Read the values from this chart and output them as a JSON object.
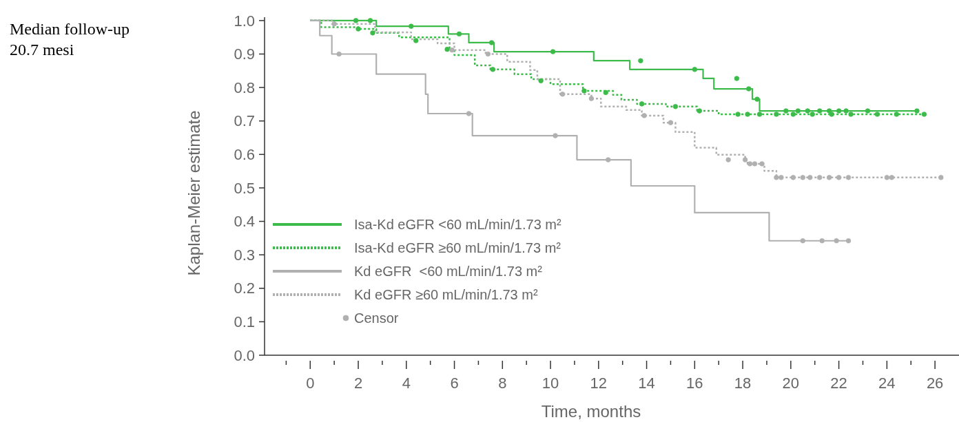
{
  "chart_data": {
    "type": "step",
    "xlabel": "Time, months",
    "ylabel": "Kaplan-Meier estimate",
    "annotations": [
      "Median follow-up\n20.7 mesi"
    ],
    "xlim": [
      -1.9,
      27
    ],
    "ylim": [
      0,
      1.01
    ],
    "xticks": [
      {
        "value": -1,
        "label": null
      },
      0,
      {
        "value": 1,
        "label": null
      },
      2,
      {
        "value": 3,
        "label": null
      },
      4,
      {
        "value": 5,
        "label": null
      },
      6,
      {
        "value": 7,
        "label": null
      },
      8,
      {
        "value": 9,
        "label": null
      },
      10,
      {
        "value": 11,
        "label": null
      },
      12,
      {
        "value": 13,
        "label": null
      },
      14,
      {
        "value": 15,
        "label": null
      },
      16,
      {
        "value": 17,
        "label": null
      },
      18,
      {
        "value": 19,
        "label": null
      },
      20,
      {
        "value": 21,
        "label": null
      },
      22,
      {
        "value": 23,
        "label": null
      },
      24,
      {
        "value": 25,
        "label": null
      },
      26
    ],
    "yticks": [
      {
        "value": 0,
        "label": "0.0"
      },
      {
        "value": 0.1,
        "label": "0.1"
      },
      {
        "value": 0.2,
        "label": "0.2"
      },
      {
        "value": 0.3,
        "label": "0.3"
      },
      {
        "value": 0.4,
        "label": "0.4"
      },
      {
        "value": 0.5,
        "label": "0.5"
      },
      {
        "value": 0.6,
        "label": "0.6"
      },
      {
        "value": 0.7,
        "label": "0.7"
      },
      {
        "value": 0.8,
        "label": "0.8"
      },
      {
        "value": 0.9,
        "label": "0.9"
      },
      {
        "value": 1,
        "label": "1.0"
      }
    ],
    "legend": "bottom left",
    "series": [
      {
        "name": "Isa-Kd eGFR <60 mL/min/1.73 m²",
        "color": "#3dbb4a",
        "line_style": "solid",
        "x": [
          0,
          2.75,
          5.75,
          6.6,
          7.65,
          11.8,
          13.3,
          16.35,
          16.8,
          18.4,
          18.7,
          25.25
        ],
        "values": [
          1.0,
          0.983,
          0.96,
          0.934,
          0.907,
          0.88,
          0.854,
          0.827,
          0.796,
          0.765,
          0.73,
          0.73
        ]
      },
      {
        "name": "Isa-Kd eGFR ≥60 mL/min/1.73 m²",
        "color": "#3dbb4a",
        "line_style": "dotted",
        "x": [
          0,
          0.46,
          2.0,
          2.75,
          3.7,
          5.8,
          6.0,
          6.85,
          7.5,
          8.5,
          9.2,
          10.0,
          11.35,
          12.6,
          12.95,
          13.6,
          14.8,
          16.1,
          17.0,
          25.55
        ],
        "values": [
          1.0,
          0.98,
          0.975,
          0.963,
          0.95,
          0.914,
          0.897,
          0.866,
          0.854,
          0.84,
          0.825,
          0.81,
          0.79,
          0.778,
          0.763,
          0.751,
          0.743,
          0.73,
          0.72,
          0.72
        ]
      },
      {
        "name": "Kd eGFR  <60 mL/min/1.73 m²",
        "color": "#b0b0b0",
        "line_style": "solid",
        "x": [
          0,
          0.4,
          0.9,
          2.75,
          4.8,
          4.9,
          6.75,
          11.1,
          13.35,
          16.0,
          19.1,
          22.4
        ],
        "values": [
          1.0,
          0.955,
          0.9,
          0.84,
          0.78,
          0.722,
          0.656,
          0.584,
          0.506,
          0.426,
          0.342,
          0.342
        ]
      },
      {
        "name": "Kd eGFR ≥60 mL/min/1.73 m²",
        "color": "#b0b0b0",
        "line_style": "dotted",
        "x": [
          0,
          0.9,
          2.7,
          4.2,
          5.3,
          6.0,
          7.3,
          8.2,
          9.15,
          9.45,
          10.4,
          11.7,
          12.1,
          13.15,
          13.8,
          14.7,
          15.2,
          16.0,
          16.9,
          18.1,
          18.2,
          18.9,
          19.4,
          26.25
        ],
        "values": [
          1.0,
          0.99,
          0.965,
          0.944,
          0.932,
          0.912,
          0.9,
          0.877,
          0.852,
          0.825,
          0.78,
          0.767,
          0.743,
          0.733,
          0.716,
          0.695,
          0.667,
          0.62,
          0.599,
          0.584,
          0.572,
          0.551,
          0.531,
          0.531
        ]
      },
      {
        "name": "Censor",
        "type": "scatter",
        "color": "#b0b0b0",
        "x": [
          1.2,
          6.6,
          10.2,
          12.4,
          20.5,
          21.3,
          21.9,
          22.4
        ],
        "values": [
          0.9,
          0.722,
          0.656,
          0.584,
          0.342,
          0.342,
          0.342,
          0.342
        ]
      },
      {
        "type": "scatter",
        "color": "#b0b0b0",
        "x": [
          1.0,
          5.9,
          7.4,
          10.5,
          11.7,
          13.9,
          15.0,
          17.4,
          18.1,
          18.3,
          18.5,
          18.8,
          19.4,
          19.6,
          20.1,
          20.5,
          20.8,
          21.2,
          21.6,
          22.0,
          22.4,
          24.0,
          24.2,
          26.25
        ],
        "values": [
          0.99,
          0.912,
          0.9,
          0.78,
          0.767,
          0.716,
          0.695,
          0.584,
          0.584,
          0.572,
          0.572,
          0.572,
          0.531,
          0.531,
          0.531,
          0.531,
          0.531,
          0.531,
          0.531,
          0.531,
          0.531,
          0.531,
          0.531,
          0.531
        ]
      },
      {
        "type": "scatter",
        "color": "#3dbb4a",
        "x": [
          2.0,
          2.6,
          4.4,
          5.7,
          7.6,
          9.6,
          11.4,
          12.3,
          13.8,
          15.2,
          16.2,
          17.8,
          18.2,
          18.7,
          19.4,
          20.1,
          20.9,
          21.7,
          22.5,
          23.6,
          24.4,
          25.55
        ],
        "values": [
          0.975,
          0.963,
          0.94,
          0.914,
          0.854,
          0.82,
          0.79,
          0.785,
          0.751,
          0.743,
          0.73,
          0.72,
          0.72,
          0.72,
          0.72,
          0.72,
          0.72,
          0.72,
          0.72,
          0.72,
          0.72,
          0.72
        ]
      },
      {
        "type": "scatter",
        "color": "#3dbb4a",
        "x": [
          1.9,
          2.5,
          4.2,
          6.2,
          7.55,
          10.1,
          13.75,
          16.0,
          17.75,
          18.25,
          18.6,
          19.8,
          20.3,
          20.7,
          21.2,
          21.6,
          22.0,
          22.3,
          23.2,
          25.25
        ],
        "values": [
          1.0,
          1.0,
          0.983,
          0.96,
          0.934,
          0.907,
          0.88,
          0.854,
          0.827,
          0.796,
          0.765,
          0.73,
          0.73,
          0.73,
          0.73,
          0.73,
          0.73,
          0.73,
          0.73,
          0.73
        ]
      }
    ]
  }
}
